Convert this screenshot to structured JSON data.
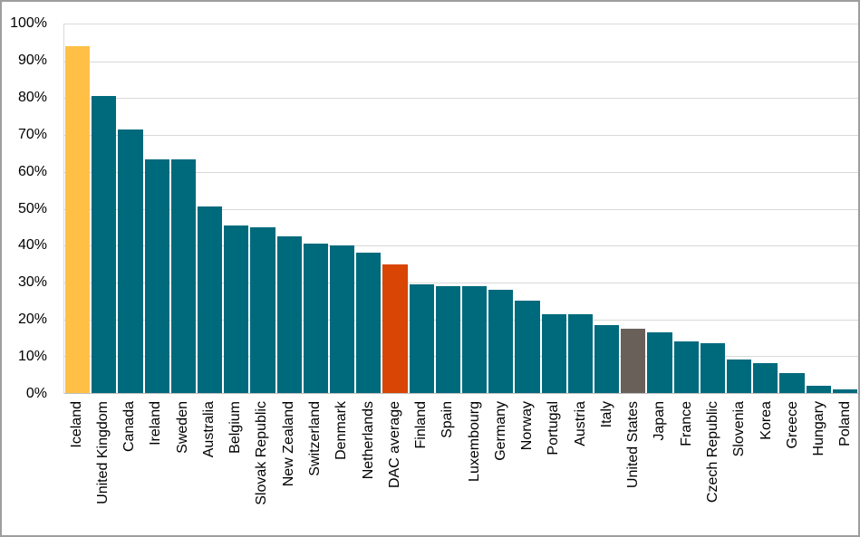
{
  "chart_data": {
    "type": "bar",
    "title": "",
    "xlabel": "",
    "ylabel": "",
    "ylim": [
      0,
      100
    ],
    "ytick_step": 10,
    "grid": true,
    "yticks": [
      "100%",
      "90%",
      "80%",
      "70%",
      "60%",
      "50%",
      "40%",
      "30%",
      "20%",
      "10%",
      "0%"
    ],
    "categories": [
      "Iceland",
      "United Kingdom",
      "Canada",
      "Ireland",
      "Sweden",
      "Australia",
      "Belgium",
      "Slovak Republic",
      "New Zealand",
      "Switzerland",
      "Denmark",
      "Netherlands",
      "DAC average",
      "Finland",
      "Spain",
      "Luxembourg",
      "Germany",
      "Norway",
      "Portugal",
      "Austria",
      "Italy",
      "United States",
      "Japan",
      "France",
      "Czech Republic",
      "Slovenia",
      "Korea",
      "Greece",
      "Hungary",
      "Poland"
    ],
    "values": [
      94,
      80.5,
      71.5,
      63.5,
      63.5,
      50.5,
      45.5,
      45,
      42.5,
      40.5,
      40,
      38,
      35,
      29.5,
      29,
      29,
      28,
      25,
      21.5,
      21.5,
      18.5,
      17.5,
      16.5,
      14,
      13.5,
      9,
      8,
      5.5,
      2,
      1
    ],
    "items": [
      {
        "label": "Iceland",
        "value": 94,
        "color": "bar_highlight_yellow"
      },
      {
        "label": "United Kingdom",
        "value": 80.5,
        "color": "bar_default"
      },
      {
        "label": "Canada",
        "value": 71.5,
        "color": "bar_default"
      },
      {
        "label": "Ireland",
        "value": 63.5,
        "color": "bar_default"
      },
      {
        "label": "Sweden",
        "value": 63.5,
        "color": "bar_default"
      },
      {
        "label": "Australia",
        "value": 50.5,
        "color": "bar_default"
      },
      {
        "label": "Belgium",
        "value": 45.5,
        "color": "bar_default"
      },
      {
        "label": "Slovak Republic",
        "value": 45,
        "color": "bar_default"
      },
      {
        "label": "New Zealand",
        "value": 42.5,
        "color": "bar_default"
      },
      {
        "label": "Switzerland",
        "value": 40.5,
        "color": "bar_default"
      },
      {
        "label": "Denmark",
        "value": 40,
        "color": "bar_default"
      },
      {
        "label": "Netherlands",
        "value": 38,
        "color": "bar_default"
      },
      {
        "label": "DAC average",
        "value": 35,
        "color": "bar_highlight_orange"
      },
      {
        "label": "Finland",
        "value": 29.5,
        "color": "bar_default"
      },
      {
        "label": "Spain",
        "value": 29,
        "color": "bar_default"
      },
      {
        "label": "Luxembourg",
        "value": 29,
        "color": "bar_default"
      },
      {
        "label": "Germany",
        "value": 28,
        "color": "bar_default"
      },
      {
        "label": "Norway",
        "value": 25,
        "color": "bar_default"
      },
      {
        "label": "Portugal",
        "value": 21.5,
        "color": "bar_default"
      },
      {
        "label": "Austria",
        "value": 21.5,
        "color": "bar_default"
      },
      {
        "label": "Italy",
        "value": 18.5,
        "color": "bar_default"
      },
      {
        "label": "United States",
        "value": 17.5,
        "color": "bar_highlight_gray"
      },
      {
        "label": "Japan",
        "value": 16.5,
        "color": "bar_default"
      },
      {
        "label": "France",
        "value": 14,
        "color": "bar_default"
      },
      {
        "label": "Czech Republic",
        "value": 13.5,
        "color": "bar_default"
      },
      {
        "label": "Slovenia",
        "value": 9,
        "color": "bar_default"
      },
      {
        "label": "Korea",
        "value": 8,
        "color": "bar_default"
      },
      {
        "label": "Greece",
        "value": 5.5,
        "color": "bar_default"
      },
      {
        "label": "Hungary",
        "value": 2,
        "color": "bar_default"
      },
      {
        "label": "Poland",
        "value": 1,
        "color": "bar_default"
      }
    ],
    "legend": null
  },
  "colors": {
    "bar_default": "#006a7d",
    "bar_highlight_yellow": "#ffc045",
    "bar_highlight_orange": "#d84504",
    "bar_highlight_gray": "#696159",
    "gridline": "#d9d9d9",
    "axis_line": "#bfbfbf",
    "plot_border": "#d9d9d9",
    "outer_border": "#9e9e9e",
    "background": "#ffffff",
    "text": "#000000"
  }
}
